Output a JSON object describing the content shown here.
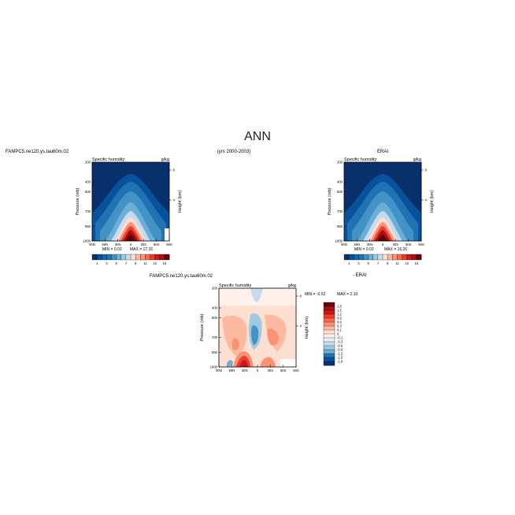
{
  "page": {
    "title": "ANN",
    "case_label_top": "FAMPC5.ne120.ys.tau60m.02",
    "years_label": "(yrs 2000-2003)",
    "ref_label": "ERAI",
    "case_label_diff": "FAMPC5.ne120.ys.tau60m.02",
    "ref_label_diff": "- ERAI"
  },
  "chart_data": [
    {
      "id": "panel-model",
      "type": "heatmap",
      "title": "Specific humidity",
      "units": "g/kg",
      "ylabel": "Pressure (mb)",
      "ylabel_right": "Height (km)",
      "xticks": [
        "90N",
        "60N",
        "30N",
        "0",
        "30S",
        "60S",
        "90S"
      ],
      "yticks": [
        "200",
        "400",
        "500",
        "700",
        "850",
        "1000"
      ],
      "ytick_values": [
        200,
        400,
        500,
        700,
        850,
        1000
      ],
      "rticks": [
        "8",
        "4"
      ],
      "ylim": [
        200,
        1000
      ],
      "xlim": [
        90,
        -90
      ],
      "min_label": "MIN = 0.02",
      "max_label": "MAX = 17.15",
      "min": 0.02,
      "max": 17.15,
      "colorbar_levels": [
        "1",
        "3",
        "5",
        "7",
        "9",
        "11",
        "13",
        "15"
      ],
      "colorbar_colors": [
        "#08306b",
        "#08519c",
        "#1864b4",
        "#2171b5",
        "#4292c6",
        "#6baed6",
        "#9ecae1",
        "#c6dbef",
        "#fee0d2",
        "#fcbba1",
        "#fc9272",
        "#fb6a4a",
        "#ef3b2c",
        "#cb181d",
        "#a50f15",
        "#67000d"
      ],
      "peak_lat": 0,
      "peak_value": 17.15
    },
    {
      "id": "panel-ref",
      "type": "heatmap",
      "title": "Specific humidity",
      "units": "g/kg",
      "ylabel": "Pressure (mb)",
      "ylabel_right": "Height (km)",
      "xticks": [
        "90N",
        "60N",
        "30N",
        "0",
        "30S",
        "60S",
        "90S"
      ],
      "yticks": [
        "200",
        "400",
        "500",
        "700",
        "850",
        "1000"
      ],
      "ytick_values": [
        200,
        400,
        500,
        700,
        850,
        1000
      ],
      "rticks": [
        "8",
        "4"
      ],
      "ylim": [
        200,
        1000
      ],
      "xlim": [
        90,
        -90
      ],
      "min_label": "MIN = 0.02",
      "max_label": "MAX = 16.26",
      "min": 0.02,
      "max": 16.26,
      "colorbar_levels": [
        "1",
        "3",
        "5",
        "7",
        "9",
        "11",
        "13",
        "15"
      ],
      "colorbar_colors": [
        "#08306b",
        "#08519c",
        "#1864b4",
        "#2171b5",
        "#4292c6",
        "#6baed6",
        "#9ecae1",
        "#c6dbef",
        "#fee0d2",
        "#fcbba1",
        "#fc9272",
        "#fb6a4a",
        "#ef3b2c",
        "#cb181d",
        "#a50f15",
        "#67000d"
      ],
      "peak_lat": 0,
      "peak_value": 16.26
    },
    {
      "id": "panel-diff",
      "type": "heatmap",
      "title": "Specific humidity",
      "units": "g/kg",
      "ylabel": "Pressure (mb)",
      "ylabel_right": "Height (km)",
      "xticks": [
        "90N",
        "60N",
        "30N",
        "0",
        "30S",
        "60S",
        "90S"
      ],
      "yticks": [
        "200",
        "400",
        "500",
        "700",
        "850",
        "1000"
      ],
      "ytick_values": [
        200,
        400,
        500,
        700,
        850,
        1000
      ],
      "rticks": [
        "8",
        "4"
      ],
      "ylim": [
        200,
        1000
      ],
      "xlim": [
        90,
        -90
      ],
      "min_label": "MIN = -0.52",
      "max_label": "MAX = 2.10",
      "min": -0.52,
      "max": 2.1,
      "colorbar_levels": [
        "1.8",
        "1.5",
        "1.2",
        "0.9",
        "0.6",
        "0.3",
        "0.1",
        "0",
        "-0.1",
        "-0.3",
        "-0.6",
        "-0.9",
        "-1.2",
        "-1.5",
        "-1.8"
      ],
      "colorbar_colors": [
        "#67000d",
        "#a50f15",
        "#cb181d",
        "#ef3b2c",
        "#fb6a4a",
        "#fc9272",
        "#fcbba1",
        "#fee0d2",
        "#fff1ea",
        "#e6f0fa",
        "#c6dbef",
        "#9ecae1",
        "#6baed6",
        "#2171b5",
        "#08519c",
        "#08306b"
      ]
    }
  ]
}
